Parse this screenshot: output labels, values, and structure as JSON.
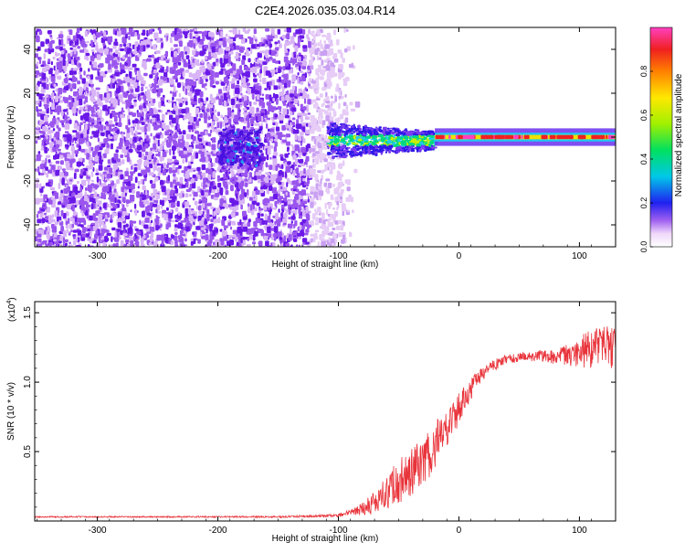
{
  "title": "C2E4.2026.035.03.04.R14",
  "chart_data": [
    {
      "type": "heatmap",
      "xlabel": "Height of straight line (km)",
      "ylabel": "Frequency (Hz)",
      "xlim": [
        -352,
        130
      ],
      "ylim": [
        -50,
        50
      ],
      "x_ticks": [
        -300,
        -200,
        -100,
        0,
        100
      ],
      "y_ticks": [
        -40,
        -20,
        0,
        20,
        40
      ],
      "colorbar": {
        "label": "Normalized spectral amplitude",
        "range": [
          0.0,
          1.0
        ],
        "ticks": [
          0.0,
          0.2,
          0.4,
          0.6,
          0.8
        ],
        "tick_labels": [
          "0.0",
          "0.2",
          "0.4",
          "0.6",
          "0.8"
        ]
      },
      "regions": [
        {
          "name": "noise",
          "x_range": [
            -352,
            -85
          ],
          "freq_range": [
            -50,
            50
          ],
          "amplitude": 0.1
        },
        {
          "name": "cluster",
          "x_range": [
            -200,
            -165
          ],
          "freq_range": [
            -12,
            4
          ],
          "amplitude": 0.2
        },
        {
          "name": "signal-transition",
          "x_range": [
            -110,
            -20
          ],
          "freq_range": [
            -8,
            6
          ],
          "amplitude": 0.5
        },
        {
          "name": "signal-line",
          "x_range": [
            -20,
            130
          ],
          "freq_range": [
            -2,
            2
          ],
          "amplitude": 0.95
        }
      ]
    },
    {
      "type": "line",
      "xlabel": "Height of straight line (km)",
      "ylabel": "SNR (10 * v/v)",
      "multiplier_label": "(x10",
      "multiplier_exp": "4",
      "multiplier_close": ")",
      "xlim": [
        -352,
        130
      ],
      "ylim": [
        0,
        1.58
      ],
      "x_ticks": [
        -300,
        -200,
        -100,
        0,
        100
      ],
      "y_ticks": [
        0.5,
        1.0,
        1.5
      ],
      "y_tick_labels": [
        "0.5",
        "1.0",
        "1.5"
      ],
      "series": [
        {
          "color": "#e8333a",
          "x": [
            -352,
            -250,
            -150,
            -100,
            -85,
            -70,
            -55,
            -40,
            -25,
            -15,
            -5,
            5,
            15,
            25,
            35,
            50,
            65,
            80,
            90,
            100,
            115,
            130
          ],
          "y": [
            0.03,
            0.03,
            0.03,
            0.04,
            0.07,
            0.13,
            0.25,
            0.35,
            0.48,
            0.62,
            0.74,
            0.88,
            1.02,
            1.1,
            1.15,
            1.18,
            1.19,
            1.18,
            1.2,
            1.22,
            1.25,
            1.26
          ],
          "noise": [
            0.005,
            0.005,
            0.006,
            0.01,
            0.03,
            0.08,
            0.15,
            0.18,
            0.18,
            0.16,
            0.13,
            0.1,
            0.06,
            0.04,
            0.04,
            0.03,
            0.04,
            0.05,
            0.08,
            0.12,
            0.15,
            0.17
          ]
        }
      ]
    }
  ]
}
